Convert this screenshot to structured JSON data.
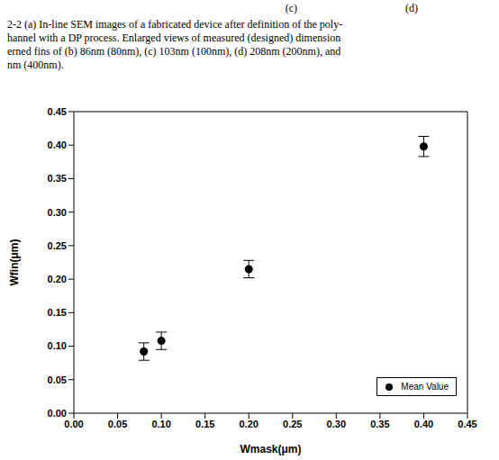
{
  "chart_data": {
    "type": "scatter",
    "panel_labels": [
      "(c)",
      "(d)"
    ],
    "annotations": [
      "2-2 (a) In-line SEM images of a fabricated device after definition of the poly-",
      "hannel with a DP process. Enlarged views of measured (designed) dimension",
      "erned fins of (b) 86nm (80nm), (c) 103nm (100nm), (d) 208nm (200nm), and",
      "nm (400nm)."
    ],
    "x_label": "Wmask(μm)",
    "y_label": "Wfin(μm)",
    "x": [
      0.08,
      0.1,
      0.2,
      0.4
    ],
    "series": [
      {
        "name": "Mean Value",
        "color": "#000000",
        "marker": "circle",
        "values": [
          0.092,
          0.108,
          0.215,
          0.398
        ],
        "error": [
          0.013,
          0.013,
          0.013,
          0.015
        ]
      }
    ],
    "xlim": [
      0,
      0.45
    ],
    "ylim": [
      0,
      0.45
    ],
    "xticks": [
      {
        "value": 0,
        "label": "0.00"
      },
      {
        "value": 0.05,
        "label": "0.05"
      },
      {
        "value": 0.1,
        "label": "0.10"
      },
      {
        "value": 0.15,
        "label": "0.15"
      },
      {
        "value": 0.2,
        "label": "0.20"
      },
      {
        "value": 0.25,
        "label": "0.25"
      },
      {
        "value": 0.3,
        "label": "0.30"
      },
      {
        "value": 0.35,
        "label": "0.35"
      },
      {
        "value": 0.4,
        "label": "0.40"
      },
      {
        "value": 0.45,
        "label": "0.45"
      }
    ],
    "yticks": [
      {
        "value": 0,
        "label": "0.00"
      },
      {
        "value": 0.05,
        "label": "0.05"
      },
      {
        "value": 0.1,
        "label": "0.10"
      },
      {
        "value": 0.15,
        "label": "0.15"
      },
      {
        "value": 0.2,
        "label": "0.20"
      },
      {
        "value": 0.25,
        "label": "0.25"
      },
      {
        "value": 0.3,
        "label": "0.30"
      },
      {
        "value": 0.35,
        "label": "0.35"
      },
      {
        "value": 0.4,
        "label": "0.40"
      },
      {
        "value": 0.45,
        "label": "0.45"
      }
    ],
    "legend": "lower right",
    "grid": false
  }
}
